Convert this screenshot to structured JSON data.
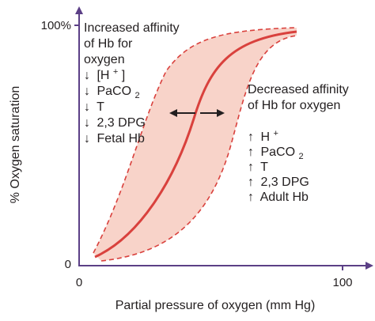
{
  "axes": {
    "y_label": "% Oxygen saturation",
    "y_ticks": [
      "100%",
      "0"
    ],
    "x_label": "Partial pressure of oxygen (mm Hg)",
    "x_ticks": [
      "0",
      "100"
    ]
  },
  "left_text": {
    "heading": [
      "Increased affinity",
      "of Hb for",
      "oxygen"
    ],
    "items": [
      {
        "arrow": "↓",
        "text": "[H",
        "sup": "+",
        "tail": "]"
      },
      {
        "arrow": "↓",
        "text": "PaCO",
        "sub": "2"
      },
      {
        "arrow": "↓",
        "text": "T"
      },
      {
        "arrow": "↓",
        "text": "2,3 DPG"
      },
      {
        "arrow": "↓",
        "text": "Fetal Hb"
      }
    ]
  },
  "right_text": {
    "heading": [
      "Decreased affinity",
      "of Hb for oxygen"
    ],
    "items": [
      {
        "arrow": "↑",
        "text": "H",
        "sup": "+"
      },
      {
        "arrow": "↑",
        "text": "PaCO",
        "sub": "2"
      },
      {
        "arrow": "↑",
        "text": "T"
      },
      {
        "arrow": "↑",
        "text": "2,3 DPG"
      },
      {
        "arrow": "↑",
        "text": "Adult Hb"
      }
    ]
  },
  "colors": {
    "axis": "#5b3f86",
    "curve": "#d9413d",
    "band_fill": "#f8d3c9",
    "arrow": "#231f20",
    "text": "#231f20"
  }
}
